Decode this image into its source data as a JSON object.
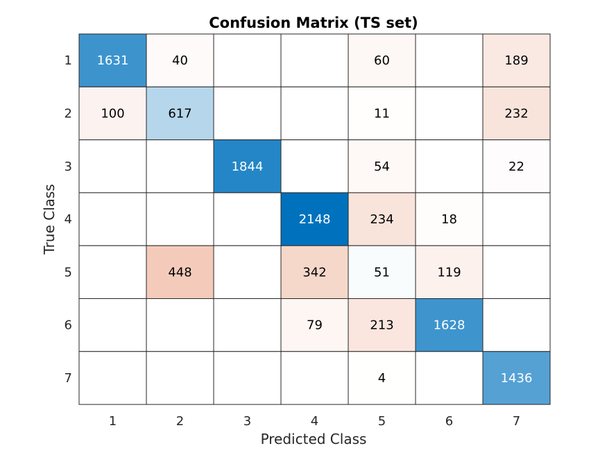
{
  "chart_data": {
    "type": "heatmap",
    "title": "Confusion Matrix (TS set)",
    "xlabel": "Predicted Class",
    "ylabel": "True Class",
    "x_categories": [
      "1",
      "2",
      "3",
      "4",
      "5",
      "6",
      "7"
    ],
    "y_categories": [
      "1",
      "2",
      "3",
      "4",
      "5",
      "6",
      "7"
    ],
    "matrix": [
      [
        1631,
        40,
        null,
        null,
        60,
        null,
        189
      ],
      [
        100,
        617,
        null,
        null,
        11,
        null,
        232
      ],
      [
        null,
        null,
        1844,
        null,
        54,
        null,
        22
      ],
      [
        null,
        null,
        null,
        2148,
        234,
        18,
        null
      ],
      [
        null,
        448,
        null,
        342,
        51,
        119,
        null
      ],
      [
        null,
        null,
        null,
        79,
        213,
        1628,
        null
      ],
      [
        null,
        null,
        null,
        null,
        4,
        null,
        1436
      ]
    ],
    "diagonal_color": "#0072BD",
    "offdiagonal_color": "#D95319"
  }
}
